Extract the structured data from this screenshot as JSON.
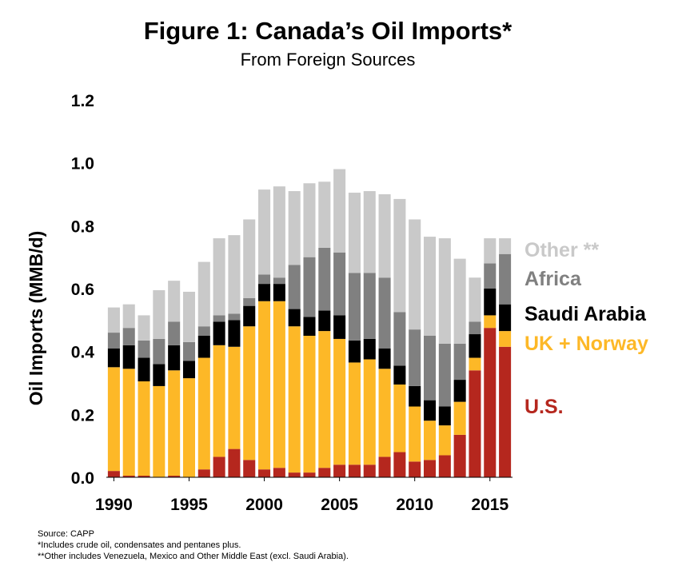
{
  "chart_data": {
    "type": "bar",
    "stacked": true,
    "title": "Figure 1: Canada’s Oil Imports*",
    "subtitle": "From Foreign Sources",
    "ylabel": "Oil Imports (MMB/d)",
    "ylim": [
      0,
      1.2
    ],
    "yticks": [
      "0.0",
      "0.2",
      "0.4",
      "0.6",
      "0.8",
      "1.0",
      "1.2"
    ],
    "xtick_labels": [
      "1990",
      "1995",
      "2000",
      "2005",
      "2010",
      "2015"
    ],
    "categories": [
      1990,
      1991,
      1992,
      1993,
      1994,
      1995,
      1996,
      1997,
      1998,
      1999,
      2000,
      2001,
      2002,
      2003,
      2004,
      2005,
      2006,
      2007,
      2008,
      2009,
      2010,
      2011,
      2012,
      2013,
      2014,
      2015,
      2016
    ],
    "series": [
      {
        "name": "U.S.",
        "color": "#b5271e",
        "values": [
          0.02,
          0.005,
          0.005,
          0.0,
          0.005,
          0.0,
          0.025,
          0.065,
          0.09,
          0.055,
          0.025,
          0.03,
          0.015,
          0.015,
          0.03,
          0.04,
          0.04,
          0.04,
          0.065,
          0.08,
          0.05,
          0.055,
          0.07,
          0.135,
          0.34,
          0.475,
          0.415
        ]
      },
      {
        "name": "UK + Norway",
        "color": "#fdb827",
        "values": [
          0.33,
          0.34,
          0.3,
          0.29,
          0.335,
          0.315,
          0.355,
          0.355,
          0.325,
          0.425,
          0.535,
          0.53,
          0.465,
          0.435,
          0.435,
          0.4,
          0.325,
          0.335,
          0.28,
          0.215,
          0.175,
          0.125,
          0.095,
          0.105,
          0.04,
          0.04,
          0.05
        ]
      },
      {
        "name": "Saudi Arabia",
        "color": "#000000",
        "values": [
          0.06,
          0.075,
          0.075,
          0.07,
          0.08,
          0.055,
          0.07,
          0.075,
          0.085,
          0.065,
          0.055,
          0.055,
          0.055,
          0.06,
          0.065,
          0.075,
          0.07,
          0.065,
          0.065,
          0.06,
          0.065,
          0.065,
          0.06,
          0.07,
          0.075,
          0.085,
          0.085
        ]
      },
      {
        "name": "Africa",
        "color": "#808080",
        "values": [
          0.05,
          0.055,
          0.055,
          0.08,
          0.075,
          0.06,
          0.03,
          0.02,
          0.02,
          0.025,
          0.03,
          0.02,
          0.14,
          0.19,
          0.2,
          0.2,
          0.215,
          0.21,
          0.225,
          0.17,
          0.18,
          0.205,
          0.2,
          0.115,
          0.04,
          0.08,
          0.16
        ]
      },
      {
        "name": "Other **",
        "color": "#c9c9c9",
        "values": [
          0.08,
          0.075,
          0.08,
          0.155,
          0.13,
          0.16,
          0.205,
          0.245,
          0.25,
          0.25,
          0.27,
          0.29,
          0.235,
          0.235,
          0.21,
          0.265,
          0.255,
          0.26,
          0.265,
          0.36,
          0.35,
          0.315,
          0.335,
          0.27,
          0.14,
          0.08,
          0.05
        ]
      }
    ],
    "legend_position": "right",
    "grid": false
  },
  "footnotes": [
    "Source: CAPP",
    "*Includes crude oil, condensates and pentanes plus.",
    "**Other includes Venezuela, Mexico and Other Middle East (excl. Saudi Arabia)."
  ]
}
